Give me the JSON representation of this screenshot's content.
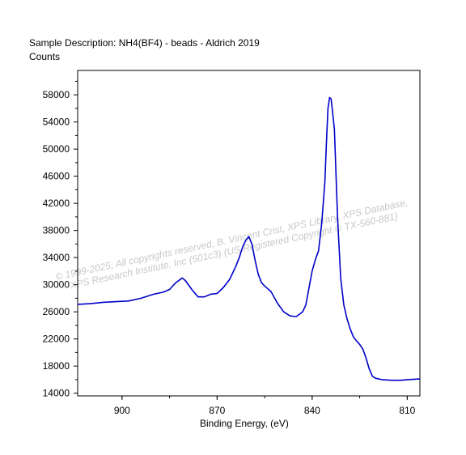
{
  "chart_data": {
    "type": "line",
    "title": "Sample Description:  NH4(BF4) - beads - Aldrich 2019",
    "ylabel": "Counts",
    "xlabel": "Binding Energy, (eV)",
    "xlim": [
      914,
      806
    ],
    "ylim": [
      13600,
      61600
    ],
    "x_ticks": [
      900,
      870,
      840,
      810
    ],
    "y_ticks": [
      14000,
      18000,
      22000,
      26000,
      30000,
      34000,
      38000,
      42000,
      46000,
      50000,
      54000,
      58000
    ],
    "grid": false,
    "line_color": "#0000c8",
    "series": [
      {
        "x": [
          914,
          910,
          906,
          902,
          898,
          894,
          890,
          887,
          885,
          883,
          881,
          880,
          878,
          876,
          874,
          872,
          870,
          868,
          866,
          864,
          863,
          862,
          861,
          860,
          859,
          858,
          857,
          856,
          855,
          853,
          851,
          849,
          847,
          845,
          843,
          842,
          841,
          840,
          839,
          838,
          837,
          836,
          835.5,
          835,
          834.5,
          834,
          833,
          832,
          831,
          830,
          829,
          828,
          827,
          826,
          825,
          824,
          823,
          822,
          821,
          820,
          818,
          815,
          812,
          810,
          806
        ],
        "values": [
          27100,
          27200,
          27400,
          27500,
          27600,
          28000,
          28600,
          28900,
          29300,
          30300,
          31000,
          30600,
          29300,
          28200,
          28200,
          28600,
          28700,
          29600,
          30800,
          32800,
          34000,
          35500,
          36500,
          37100,
          36000,
          33600,
          31500,
          30300,
          29800,
          29000,
          27300,
          26000,
          25400,
          25300,
          26000,
          27000,
          29500,
          32000,
          33700,
          35000,
          39000,
          45000,
          51000,
          56000,
          57600,
          57400,
          53000,
          40000,
          31000,
          27000,
          25000,
          23500,
          22300,
          21700,
          21200,
          20500,
          19200,
          17600,
          16500,
          16200,
          16000,
          15900,
          15900,
          16000,
          16100
        ]
      }
    ],
    "watermark": [
      "© 1999-2025,  All copyrights reserved,   B. Vincent Crist,  XPS Library, XPS Database,",
      "XPS Research Institute, Inc (501c3)   (US Registered Copyright © TX-560-881)"
    ]
  }
}
